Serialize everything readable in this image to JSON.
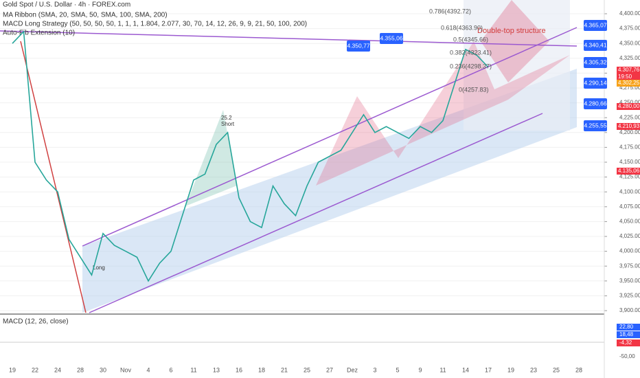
{
  "chart_data": {
    "type": "line",
    "title": "Gold Spot / U.S. Dollar · 4h · FOREX.com",
    "indicators": [
      "MA Ribbon (SMA, 20, SMA, 50, SMA, 100, SMA, 200)",
      "MACD Long Strategy (50, 50, 50, 50, 1, 1, 1, 1.804, 2.077, 30, 70, 14, 12, 26, 9, 9, 21, 50, 100, 200)",
      "Auto-Fib Extension (10)"
    ],
    "macd_title": "MACD (12, 26, close)",
    "annotations": [
      "Double-top structure",
      "25.2",
      "Short",
      "Long"
    ],
    "categories": [
      "19",
      null,
      "22",
      null,
      "24",
      null,
      "28",
      null,
      "30",
      null,
      "Nov",
      null,
      "4",
      null,
      "6",
      null,
      "11",
      null,
      "13",
      null,
      "16",
      null,
      "18",
      null,
      "21",
      null,
      "25",
      null,
      "27",
      null,
      "Dez",
      null,
      "3",
      null,
      "5",
      null,
      "9",
      null,
      "11",
      null,
      "14",
      null,
      "17",
      null,
      "19",
      null,
      "23",
      null,
      "25",
      null,
      "28"
    ],
    "values": [
      4350,
      4370,
      4150,
      4120,
      4100,
      4020,
      3990,
      3960,
      4030,
      4010,
      4000,
      3990,
      3950,
      3980,
      4000,
      4060,
      4120,
      4130,
      4180,
      4200,
      4090,
      4050,
      4040,
      4110,
      4080,
      4060,
      4110,
      4150,
      4160,
      4170,
      4200,
      4230,
      4200,
      4210,
      4200,
      4190,
      4210,
      4200,
      4220,
      4280,
      4340,
      4330,
      4310,
      null,
      null,
      null,
      null,
      null,
      null,
      null,
      null
    ],
    "color": "#26a69a",
    "ylim": [
      3900,
      4400
    ],
    "yticks": [
      {
        "value": 3900,
        "label": "3,900.00"
      },
      {
        "value": 3925,
        "label": "3,925.00"
      },
      {
        "value": 3950,
        "label": "3,950.00"
      },
      {
        "value": 3975,
        "label": "3,975.00"
      },
      {
        "value": 4000,
        "label": "4,000.00"
      },
      {
        "value": 4025,
        "label": "4,025.00"
      },
      {
        "value": 4050,
        "label": "4,050.00"
      },
      {
        "value": 4075,
        "label": "4,075.00"
      },
      {
        "value": 4100,
        "label": "4,100.00"
      },
      {
        "value": 4125,
        "label": "4,125.00"
      },
      {
        "value": 4150,
        "label": "4,150.00"
      },
      {
        "value": 4175,
        "label": "4,175.00"
      },
      {
        "value": 4200,
        "label": "4,200.00"
      },
      {
        "value": 4225,
        "label": "4,225.00"
      },
      {
        "value": 4250,
        "label": "4,250.00"
      },
      {
        "value": 4275,
        "label": "4,275.00"
      },
      {
        "value": 4300,
        "label": "4,300.00"
      },
      {
        "value": 4325,
        "label": "4,325.00"
      },
      {
        "value": 4350,
        "label": "4,350.00"
      },
      {
        "value": 4375,
        "label": "4,375.00"
      },
      {
        "value": 4400,
        "label": "4,400.00"
      }
    ],
    "grid": true,
    "fib_labels": [
      "0.786(4392.72)",
      "0.618(4363.90)",
      "0.5(4345.66)",
      "0.382(4323.41)",
      "0.236(4298.37)",
      "0(4257.83)"
    ],
    "drawing_tags": [
      "4.350,77",
      "4.355,06",
      "4.365,07",
      "4.340,41",
      "4.305,32",
      "4.290,14",
      "4.280,66",
      "4.255,55"
    ],
    "axis_tags": [
      "4.307,76",
      "19:50",
      "4.302,25",
      "4.280,00",
      "4.210,93",
      "4.135,06"
    ],
    "macd_tags": [
      "22,80",
      "18,48",
      "-4,32",
      "-50,00"
    ]
  }
}
